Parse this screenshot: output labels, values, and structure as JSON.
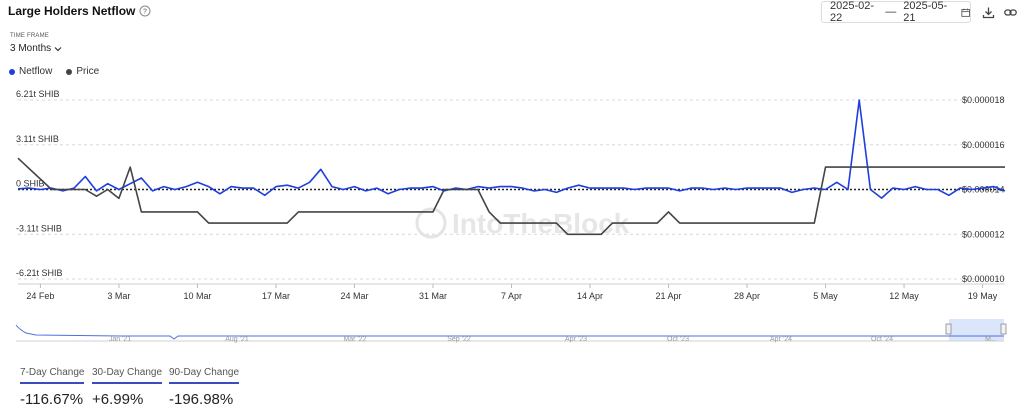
{
  "header": {
    "title": "Large Holders Netflow",
    "date_start": "2025-02-22",
    "date_sep": "—",
    "date_end": "2025-05-21"
  },
  "timeframe": {
    "label": "TIME FRAME",
    "value": "3 Months"
  },
  "legend": [
    {
      "name": "Netflow",
      "color": "#1d3fe0"
    },
    {
      "name": "Price",
      "color": "#444444"
    }
  ],
  "watermark": "IntoTheBlock",
  "navigator": {
    "labels": [
      "Jan '21",
      "Aug '21",
      "Mar '22",
      "Sep '22",
      "Apr '23",
      "Oct '23",
      "Apr '24",
      "Oct '24",
      "M..."
    ]
  },
  "changes": [
    {
      "label": "7-Day Change",
      "value": "-116.67%"
    },
    {
      "label": "30-Day Change",
      "value": "+6.99%"
    },
    {
      "label": "90-Day Change",
      "value": "-196.98%"
    }
  ],
  "chart_data": {
    "type": "line",
    "x_tick_labels": [
      "24 Feb",
      "3 Mar",
      "10 Mar",
      "17 Mar",
      "24 Mar",
      "31 Mar",
      "7 Apr",
      "14 Apr",
      "21 Apr",
      "28 Apr",
      "5 May",
      "12 May",
      "19 May"
    ],
    "y_left_tick_labels": [
      "6.21t SHIB",
      "3.11t SHIB",
      "0 SHIB",
      "-3.11t SHIB",
      "-6.21t SHIB"
    ],
    "y_left_range": [
      -6.21,
      6.21
    ],
    "y_left_unit": "t SHIB",
    "y_right_tick_labels": [
      "$0.000018",
      "$0.000016",
      "$0.000014",
      "$0.000012",
      "$0.000010"
    ],
    "y_right_range": [
      1e-05,
      1.8e-05
    ],
    "x_range": [
      "2025-02-22",
      "2025-05-21"
    ],
    "series": [
      {
        "name": "Netflow",
        "axis": "left",
        "color": "#1d3fe0",
        "x": [
          "2025-02-22",
          "2025-02-23",
          "2025-02-24",
          "2025-02-25",
          "2025-02-26",
          "2025-02-27",
          "2025-02-28",
          "2025-03-01",
          "2025-03-02",
          "2025-03-03",
          "2025-03-04",
          "2025-03-05",
          "2025-03-06",
          "2025-03-07",
          "2025-03-08",
          "2025-03-09",
          "2025-03-10",
          "2025-03-11",
          "2025-03-12",
          "2025-03-13",
          "2025-03-14",
          "2025-03-15",
          "2025-03-16",
          "2025-03-17",
          "2025-03-18",
          "2025-03-19",
          "2025-03-20",
          "2025-03-21",
          "2025-03-22",
          "2025-03-23",
          "2025-03-24",
          "2025-03-25",
          "2025-03-26",
          "2025-03-27",
          "2025-03-28",
          "2025-03-29",
          "2025-03-30",
          "2025-03-31",
          "2025-04-01",
          "2025-04-02",
          "2025-04-03",
          "2025-04-04",
          "2025-04-05",
          "2025-04-06",
          "2025-04-07",
          "2025-04-08",
          "2025-04-09",
          "2025-04-10",
          "2025-04-11",
          "2025-04-12",
          "2025-04-13",
          "2025-04-14",
          "2025-04-15",
          "2025-04-16",
          "2025-04-17",
          "2025-04-18",
          "2025-04-19",
          "2025-04-20",
          "2025-04-21",
          "2025-04-22",
          "2025-04-23",
          "2025-04-24",
          "2025-04-25",
          "2025-04-26",
          "2025-04-27",
          "2025-04-28",
          "2025-04-29",
          "2025-04-30",
          "2025-05-01",
          "2025-05-02",
          "2025-05-03",
          "2025-05-04",
          "2025-05-05",
          "2025-05-06",
          "2025-05-07",
          "2025-05-08",
          "2025-05-09",
          "2025-05-10",
          "2025-05-11",
          "2025-05-12",
          "2025-05-13",
          "2025-05-14",
          "2025-05-15",
          "2025-05-16",
          "2025-05-17",
          "2025-05-18",
          "2025-05-19",
          "2025-05-20",
          "2025-05-21"
        ],
        "values": [
          0.05,
          0.1,
          0.0,
          0.1,
          -0.1,
          0.1,
          0.9,
          -0.1,
          0.4,
          0.0,
          0.4,
          0.8,
          -0.1,
          0.2,
          0.0,
          0.2,
          0.5,
          0.2,
          -0.3,
          0.2,
          0.1,
          0.1,
          -0.4,
          0.2,
          0.3,
          0.1,
          0.5,
          1.4,
          0.2,
          0.0,
          0.2,
          -0.1,
          0.1,
          -0.3,
          0.0,
          0.1,
          0.1,
          0.2,
          -0.1,
          0.1,
          0.0,
          0.2,
          0.1,
          0.2,
          0.2,
          0.1,
          -0.1,
          0.0,
          -0.2,
          0.1,
          0.3,
          0.1,
          0.1,
          0.1,
          0.1,
          0.0,
          0.1,
          0.1,
          0.1,
          -0.1,
          0.1,
          0.1,
          0.0,
          0.1,
          0.0,
          0.1,
          0.1,
          0.1,
          0.1,
          -0.2,
          0.0,
          0.1,
          0.0,
          0.5,
          0.0,
          6.2,
          0.0,
          -0.6,
          0.1,
          0.0,
          0.2,
          0.0,
          0.0,
          -0.4,
          0.1,
          0.0,
          0.1,
          0.2,
          -0.1
        ]
      },
      {
        "name": "Price",
        "axis": "right",
        "color": "#444444",
        "x": [
          "2025-02-22",
          "2025-02-25",
          "2025-02-26",
          "2025-02-27",
          "2025-02-28",
          "2025-03-01",
          "2025-03-02",
          "2025-03-03",
          "2025-03-04",
          "2025-03-05",
          "2025-03-06",
          "2025-03-07",
          "2025-03-08",
          "2025-03-09",
          "2025-03-10",
          "2025-03-11",
          "2025-03-12",
          "2025-03-13",
          "2025-03-14",
          "2025-03-15",
          "2025-03-16",
          "2025-03-17",
          "2025-03-18",
          "2025-03-19",
          "2025-03-20",
          "2025-03-21",
          "2025-03-22",
          "2025-03-23",
          "2025-03-24",
          "2025-03-25",
          "2025-03-26",
          "2025-03-27",
          "2025-03-28",
          "2025-03-29",
          "2025-03-30",
          "2025-03-31",
          "2025-04-01",
          "2025-04-02",
          "2025-04-03",
          "2025-04-04",
          "2025-04-05",
          "2025-04-06",
          "2025-04-07",
          "2025-04-08",
          "2025-04-09",
          "2025-04-10",
          "2025-04-11",
          "2025-04-12",
          "2025-04-13",
          "2025-04-14",
          "2025-04-15",
          "2025-04-16",
          "2025-04-17",
          "2025-04-18",
          "2025-04-19",
          "2025-04-20",
          "2025-04-21",
          "2025-04-22",
          "2025-04-23",
          "2025-04-24",
          "2025-04-25",
          "2025-04-26",
          "2025-04-27",
          "2025-04-28",
          "2025-04-29",
          "2025-04-30",
          "2025-05-01",
          "2025-05-02",
          "2025-05-03",
          "2025-05-04",
          "2025-05-05",
          "2025-05-06",
          "2025-05-07",
          "2025-05-08",
          "2025-05-09",
          "2025-05-10",
          "2025-05-11",
          "2025-05-12",
          "2025-05-13",
          "2025-05-14",
          "2025-05-15",
          "2025-05-16",
          "2025-05-17",
          "2025-05-18",
          "2025-05-19",
          "2025-05-20",
          "2025-05-21"
        ],
        "values": [
          1.54e-05,
          1.4e-05,
          1.4e-05,
          1.4e-05,
          1.4e-05,
          1.37e-05,
          1.4e-05,
          1.36e-05,
          1.5e-05,
          1.3e-05,
          1.3e-05,
          1.3e-05,
          1.3e-05,
          1.3e-05,
          1.3e-05,
          1.25e-05,
          1.25e-05,
          1.25e-05,
          1.25e-05,
          1.25e-05,
          1.25e-05,
          1.25e-05,
          1.25e-05,
          1.3e-05,
          1.3e-05,
          1.3e-05,
          1.3e-05,
          1.3e-05,
          1.3e-05,
          1.3e-05,
          1.3e-05,
          1.3e-05,
          1.3e-05,
          1.3e-05,
          1.3e-05,
          1.3e-05,
          1.4e-05,
          1.4e-05,
          1.4e-05,
          1.4e-05,
          1.3e-05,
          1.25e-05,
          1.25e-05,
          1.25e-05,
          1.25e-05,
          1.25e-05,
          1.25e-05,
          1.2e-05,
          1.2e-05,
          1.2e-05,
          1.2e-05,
          1.25e-05,
          1.25e-05,
          1.25e-05,
          1.25e-05,
          1.25e-05,
          1.3e-05,
          1.25e-05,
          1.25e-05,
          1.25e-05,
          1.25e-05,
          1.25e-05,
          1.25e-05,
          1.25e-05,
          1.25e-05,
          1.25e-05,
          1.25e-05,
          1.25e-05,
          1.25e-05,
          1.25e-05,
          1.5e-05,
          1.5e-05,
          1.5e-05,
          1.5e-05,
          1.5e-05,
          1.5e-05,
          1.5e-05,
          1.5e-05,
          1.5e-05,
          1.5e-05,
          1.5e-05,
          1.5e-05,
          1.5e-05,
          1.5e-05,
          1.5e-05,
          1.5e-05,
          1.5e-05
        ]
      }
    ],
    "zero_line": "dotted",
    "grid": "horizontal dashed",
    "legend_position": "top-left"
  }
}
